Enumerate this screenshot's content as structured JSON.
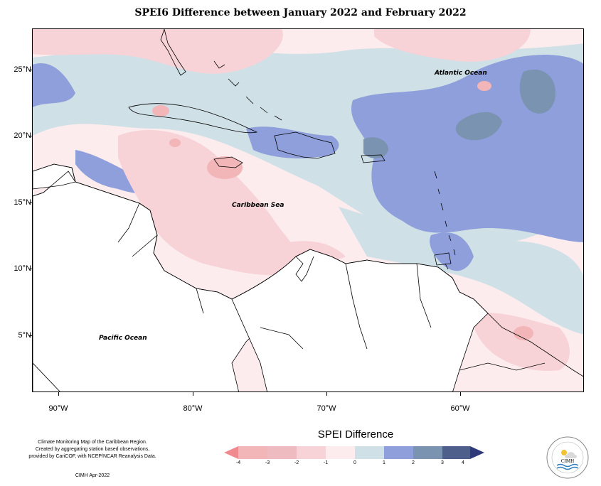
{
  "title": "SPEI6 Difference between January 2022 and February 2022",
  "map": {
    "lat_labels": [
      "25°N",
      "20°N",
      "15°N",
      "10°N",
      "5°N"
    ],
    "lon_labels": [
      "90°W",
      "80°W",
      "70°W",
      "60°W"
    ],
    "place_labels": {
      "atlantic": "Atlantic Ocean",
      "caribbean": "Caribbean Sea",
      "pacific": "Pacific Ocean"
    },
    "colors": {
      "-4": "#f08a8f",
      "-3": "#f2b5b8",
      "-2": "#f7d3d8",
      "-1": "#fcecee",
      "0": "#cfe0e6",
      "1": "#8f9fdb",
      "2": "#7a93b0",
      "3": "#4f5f8c",
      "4": "#2e3a7a"
    }
  },
  "legend": {
    "title": "SPEI Difference",
    "ticks": [
      "-4",
      "-3",
      "-2",
      "-1",
      "0",
      "1",
      "2",
      "3",
      "4"
    ]
  },
  "credits": {
    "line1": "Climate Monitoring Map of the Caribbean Region.",
    "line2": "Created by aggregating station based observations,",
    "line3": "provided by CariCOF, with NCEP/NCAR Reanalysis Data.",
    "date": "CIMH Apr-2022"
  },
  "logo": {
    "text": "CIMH",
    "icon": "cimh-logo-icon"
  }
}
